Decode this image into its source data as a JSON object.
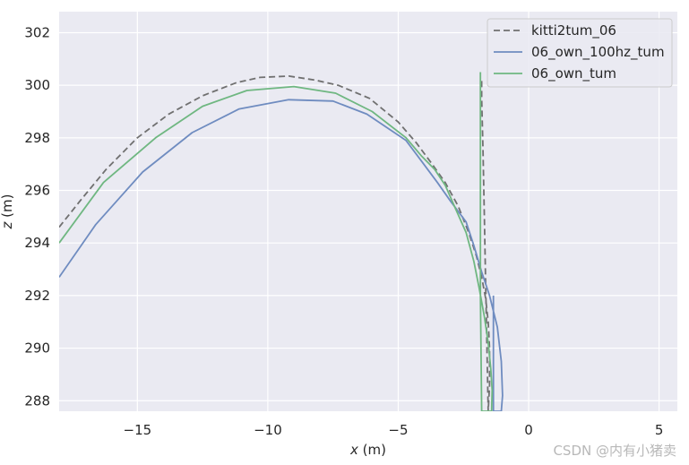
{
  "chart_data": {
    "type": "line",
    "xlabel_var": "x",
    "xlabel_unit": " (m)",
    "ylabel_var": "z",
    "ylabel_unit": " (m)",
    "xlim": [
      -18,
      5.7
    ],
    "ylim": [
      287.6,
      302.8
    ],
    "xticks": [
      -15,
      -10,
      -5,
      0,
      5
    ],
    "xtick_labels": [
      "−15",
      "−10",
      "−5",
      "0",
      "5"
    ],
    "yticks": [
      288,
      290,
      292,
      294,
      296,
      298,
      300,
      302
    ],
    "ytick_labels": [
      "288",
      "290",
      "292",
      "294",
      "296",
      "298",
      "300",
      "302"
    ],
    "grid": true,
    "legend_position": "top-right",
    "series": [
      {
        "name": "kitti2tum_06",
        "color": "#707070",
        "dash": "7,4",
        "x": [
          -18.0,
          -17.2,
          -16.2,
          -15.0,
          -13.8,
          -12.5,
          -11.2,
          -10.3,
          -9.2,
          -8.2,
          -7.3,
          -6.1,
          -5.0,
          -4.3,
          -3.7,
          -3.2,
          -2.7,
          -2.3,
          -2.0,
          -1.8,
          -1.65,
          -1.55,
          -1.5,
          -1.5,
          -1.55,
          -1.6,
          -1.65,
          -1.7,
          -1.75,
          -1.8,
          -1.8
        ],
        "y": [
          294.6,
          295.6,
          296.8,
          298.0,
          298.9,
          299.6,
          300.1,
          300.3,
          300.35,
          300.2,
          300.0,
          299.5,
          298.6,
          297.8,
          297.0,
          296.3,
          295.4,
          294.4,
          293.5,
          292.7,
          291.9,
          291.0,
          290.0,
          288.6,
          287.6,
          290.0,
          292.5,
          295.0,
          297.5,
          299.5,
          300.3
        ]
      },
      {
        "name": "06_own_100hz_tum",
        "color": "#6f8cc0",
        "dash": "",
        "x": [
          -18.0,
          -16.6,
          -14.8,
          -12.9,
          -11.1,
          -9.2,
          -7.5,
          -6.2,
          -4.7,
          -4.1,
          -3.5,
          -3.0,
          -2.4,
          -2.1,
          -1.8,
          -1.5,
          -1.2,
          -1.05,
          -1.0,
          -1.05,
          -1.35,
          -1.35
        ],
        "y": [
          292.7,
          294.7,
          296.7,
          298.2,
          299.1,
          299.45,
          299.4,
          298.9,
          297.9,
          297.1,
          296.3,
          295.6,
          294.8,
          293.9,
          292.9,
          292.0,
          290.8,
          289.5,
          288.2,
          287.6,
          287.6,
          292.0
        ]
      },
      {
        "name": "06_own_tum",
        "color": "#6fb781",
        "dash": "",
        "x": [
          -18.0,
          -16.3,
          -14.3,
          -12.5,
          -10.8,
          -9.0,
          -7.4,
          -6.0,
          -4.7,
          -4.1,
          -3.6,
          -3.2,
          -2.8,
          -2.4,
          -2.1,
          -1.9,
          -1.7,
          -1.55,
          -1.45,
          -1.4,
          -1.42,
          -1.8,
          -1.85,
          -1.85
        ],
        "y": [
          294.0,
          296.3,
          298.0,
          299.2,
          299.8,
          299.95,
          299.7,
          299.0,
          298.0,
          297.3,
          296.8,
          296.2,
          295.3,
          294.4,
          293.3,
          292.3,
          291.2,
          290.2,
          289.2,
          288.4,
          287.6,
          287.6,
          292.0,
          300.5
        ]
      }
    ]
  },
  "watermark": "CSDN @内有小猪卖"
}
